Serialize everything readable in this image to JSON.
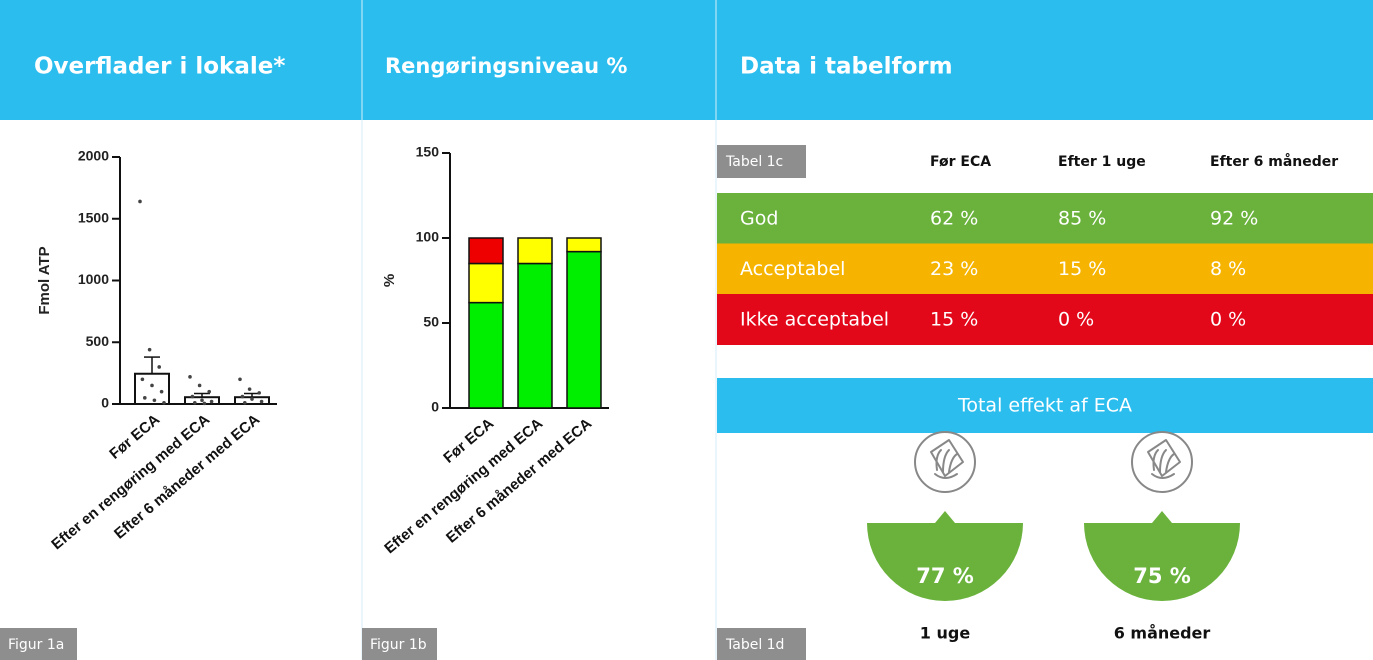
{
  "headers": [
    "Overflader i lokale*",
    "Rengøringsniveau %",
    "Data i tabelform"
  ],
  "figure_tags": [
    "Figur 1a",
    "Figur 1b"
  ],
  "chart_data": [
    {
      "type": "bar",
      "y_label": "Fmol ATP",
      "categories": [
        "Før ECA",
        "Efter en rengøring med ECA",
        "Efter 6 måneder med ECA"
      ],
      "values": [
        245,
        55,
        55
      ],
      "errors": [
        135,
        30,
        30
      ],
      "points": [
        [
          1640,
          440,
          300,
          200,
          150,
          100,
          50,
          30,
          10
        ],
        [
          220,
          150,
          100,
          60,
          30,
          20,
          10,
          5
        ],
        [
          200,
          120,
          90,
          60,
          40,
          20,
          10
        ]
      ],
      "color": "#ffffff",
      "ylim": [
        0,
        2000
      ],
      "yticks": [
        0,
        500,
        1000,
        1500,
        2000
      ]
    },
    {
      "type": "stacked",
      "y_label": "%",
      "categories": [
        "Før ECA",
        "Efter en rengøring med ECA",
        "Efter 6 måneder med ECA"
      ],
      "series": [
        {
          "color": "#00ee00",
          "values": [
            62,
            85,
            92
          ]
        },
        {
          "color": "#ffff00",
          "values": [
            23,
            15,
            8
          ]
        },
        {
          "color": "#ee0000",
          "values": [
            15,
            0,
            0
          ]
        }
      ],
      "ylim": [
        0,
        150
      ],
      "yticks": [
        0,
        50,
        100,
        150
      ]
    }
  ],
  "table_1c": {
    "tag": "Tabel 1c",
    "columns": [
      "Før ECA",
      "Efter 1 uge",
      "Efter 6 måneder"
    ],
    "rows": [
      [
        "God",
        "62 %",
        "85 %",
        "92 %"
      ],
      [
        "Acceptabel",
        "23 %",
        "15 %",
        "8 %"
      ],
      [
        "Ikke acceptabel",
        "15 %",
        "0 %",
        "0 %"
      ]
    ]
  },
  "table_1d": {
    "tag": "Tabel 1d",
    "title": "Total effekt af ECA",
    "items": [
      {
        "value": "77 %",
        "label": "1 uge"
      },
      {
        "value": "75 %",
        "label": "6 måneder"
      }
    ]
  }
}
